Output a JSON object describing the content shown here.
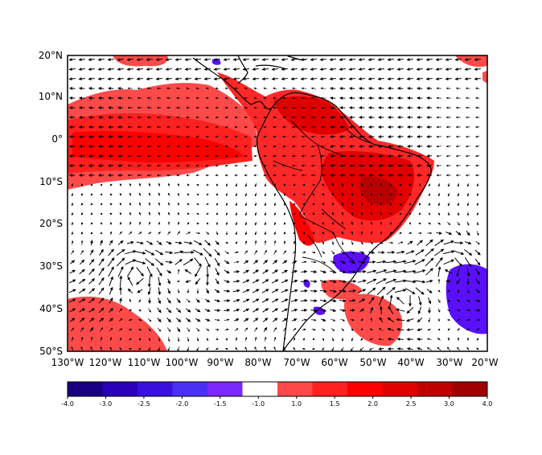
{
  "map": {
    "lat_labels": [
      "20°N",
      "10°N",
      "0°",
      "10°S",
      "20°S",
      "30°S",
      "40°S",
      "50°S"
    ],
    "lon_labels": [
      "130°W",
      "120°W",
      "110°W",
      "100°W",
      "90°W",
      "80°W",
      "70°W",
      "60°W",
      "50°W",
      "40°W",
      "30°W",
      "20°W"
    ],
    "extent": {
      "lon": [
        -130,
        -20
      ],
      "lat": [
        -50,
        20
      ]
    },
    "has_wind_vectors": true,
    "has_country_borders": true
  },
  "colorbar": {
    "tick_labels": [
      "-4.0",
      "-3.0",
      "-2.5",
      "-2.0",
      "-1.5",
      "-1.0",
      "1.0",
      "1.5",
      "2.0",
      "2.5",
      "3.0",
      "4.0"
    ],
    "colors": [
      "#1a0080",
      "#2a00b8",
      "#3a10e0",
      "#4a30f5",
      "#7a28ff",
      "#ffffff",
      "#ff4848",
      "#ff2020",
      "#ff0000",
      "#e00000",
      "#c00000",
      "#a00000"
    ]
  },
  "shading": {
    "positive_colors": [
      "#ff5a5a",
      "#ff2a2a",
      "#ff0000",
      "#d80000"
    ],
    "negative_color": "#5a10ff"
  }
}
